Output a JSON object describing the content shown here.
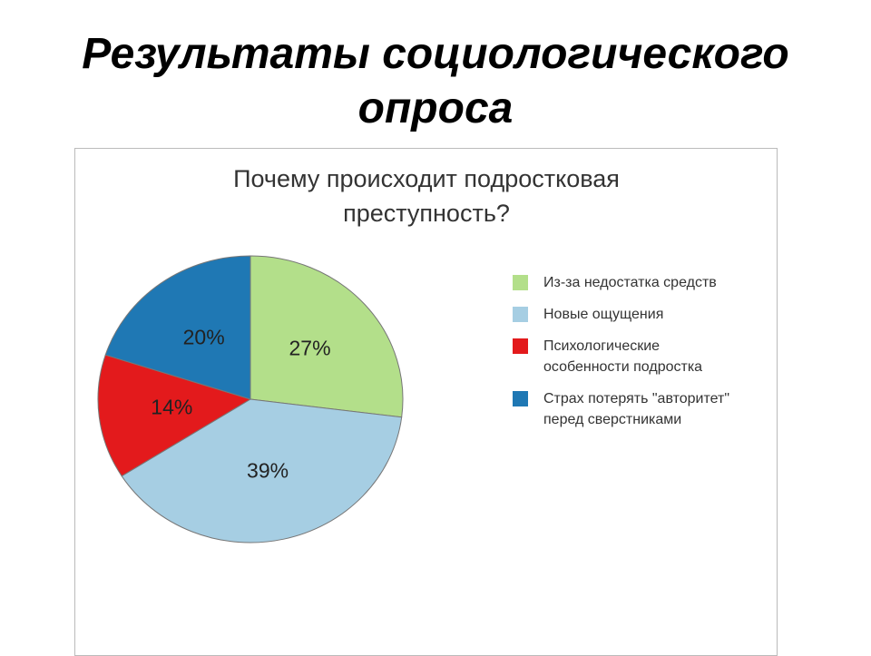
{
  "slide_title": "Результаты социологического опроса",
  "chart_data": {
    "type": "pie",
    "title": "Почему происходит подростковая преступность?",
    "categories": [
      "Из-за недостатка средств",
      "Новые ощущения",
      "Психологические особенности подростка",
      "Страх потерять \"авторитет\" перед сверстниками"
    ],
    "values": [
      27,
      39,
      14,
      20
    ],
    "value_labels": [
      "27%",
      "39%",
      "14%",
      "20%"
    ],
    "colors": [
      "#b3df8a",
      "#a6cee3",
      "#e31a1c",
      "#1f78b4"
    ],
    "legend": "right"
  }
}
